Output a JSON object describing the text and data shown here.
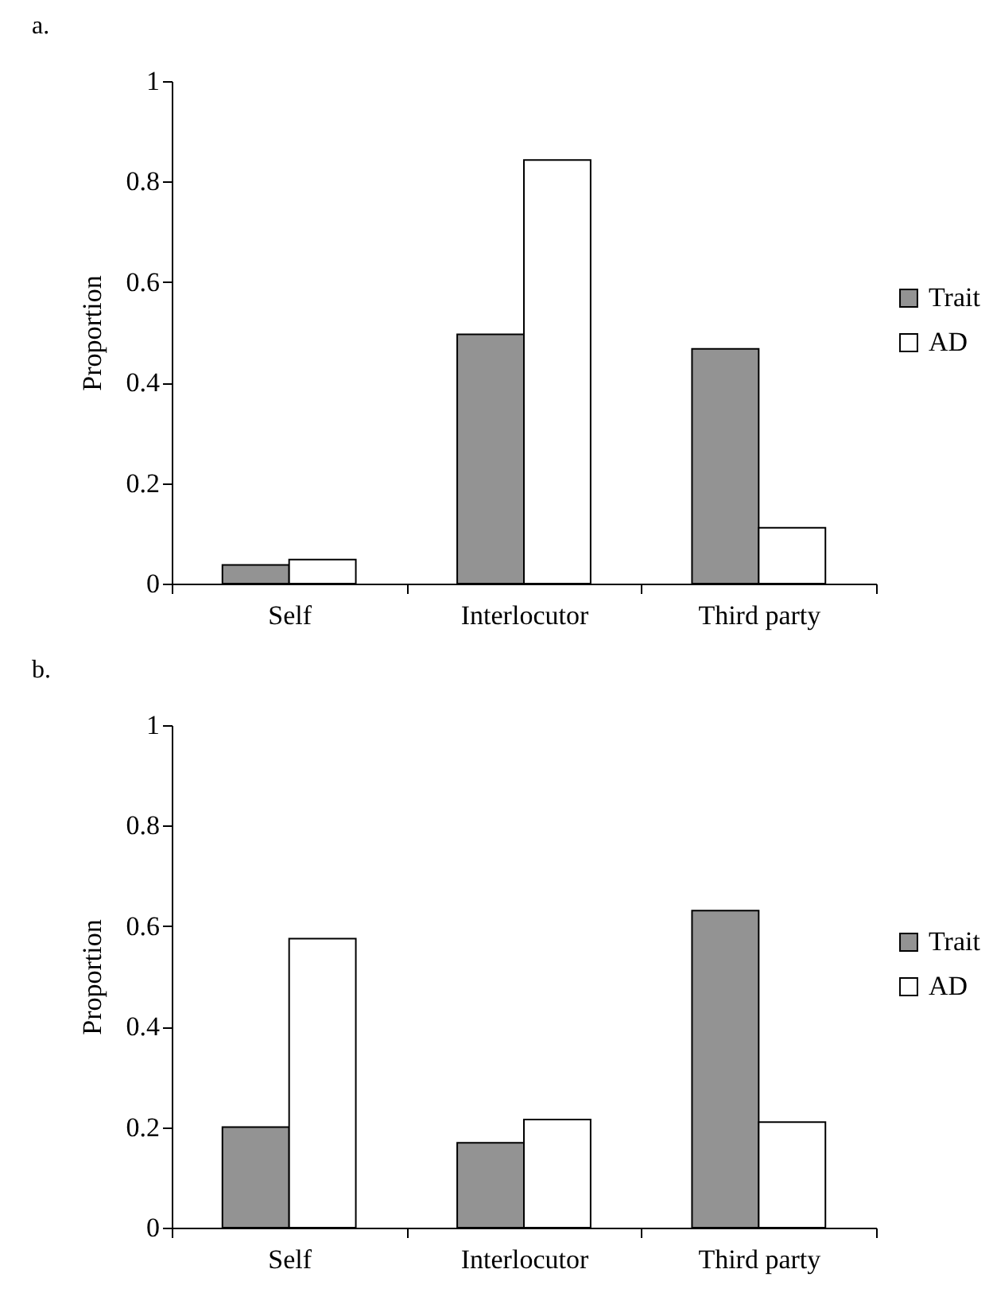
{
  "chart_data": [
    {
      "type": "bar",
      "title": "a.",
      "ylabel": "Proportion",
      "categories": [
        "Self",
        "Interlocutor",
        "Third party"
      ],
      "series": [
        {
          "name": "Trait",
          "color": "#939393",
          "values": [
            0.037,
            0.496,
            0.467
          ]
        },
        {
          "name": "AD",
          "color": "#ffffff",
          "values": [
            0.048,
            0.843,
            0.111
          ]
        }
      ],
      "ylim": [
        0,
        1
      ],
      "yticks": [
        0,
        0.2,
        0.4,
        0.6,
        0.8,
        1
      ],
      "legend": "right"
    },
    {
      "type": "bar",
      "title": "b.",
      "ylabel": "Proportion",
      "categories": [
        "Self",
        "Interlocutor",
        "Third party"
      ],
      "series": [
        {
          "name": "Trait",
          "color": "#939393",
          "values": [
            0.2,
            0.169,
            0.631
          ]
        },
        {
          "name": "AD",
          "color": "#ffffff",
          "values": [
            0.575,
            0.215,
            0.21
          ]
        }
      ],
      "ylim": [
        0,
        1
      ],
      "yticks": [
        0,
        0.2,
        0.4,
        0.6,
        0.8,
        1
      ],
      "legend": "right"
    }
  ]
}
